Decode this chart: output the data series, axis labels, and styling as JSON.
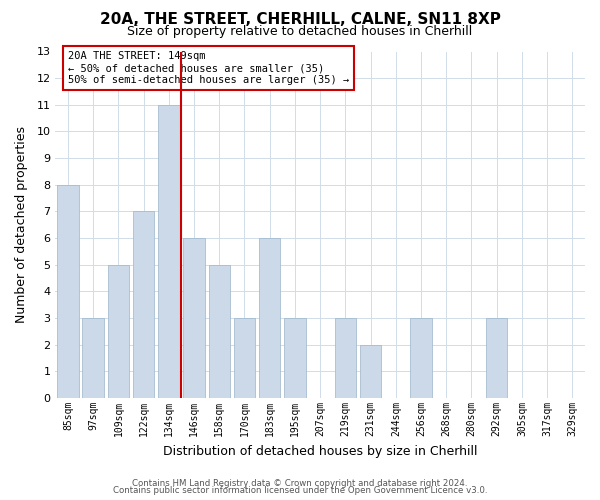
{
  "title_line1": "20A, THE STREET, CHERHILL, CALNE, SN11 8XP",
  "title_line2": "Size of property relative to detached houses in Cherhill",
  "xlabel": "Distribution of detached houses by size in Cherhill",
  "ylabel": "Number of detached properties",
  "bar_labels": [
    "85sqm",
    "97sqm",
    "109sqm",
    "122sqm",
    "134sqm",
    "146sqm",
    "158sqm",
    "170sqm",
    "183sqm",
    "195sqm",
    "207sqm",
    "219sqm",
    "231sqm",
    "244sqm",
    "256sqm",
    "268sqm",
    "280sqm",
    "292sqm",
    "305sqm",
    "317sqm",
    "329sqm"
  ],
  "bar_values": [
    8,
    3,
    5,
    7,
    11,
    6,
    5,
    3,
    6,
    3,
    0,
    3,
    2,
    0,
    3,
    0,
    0,
    3,
    0,
    0,
    0
  ],
  "bar_color": "#ccd9e8",
  "bar_edge_color": "#9bb5cc",
  "highlight_color": "#cc0000",
  "vline_x": 4.5,
  "annotation_title": "20A THE STREET: 149sqm",
  "annotation_line2": "← 50% of detached houses are smaller (35)",
  "annotation_line3": "50% of semi-detached houses are larger (35) →",
  "ylim": [
    0,
    13
  ],
  "yticks": [
    0,
    1,
    2,
    3,
    4,
    5,
    6,
    7,
    8,
    9,
    10,
    11,
    12,
    13
  ],
  "grid_color": "#d0dce8",
  "footer_line1": "Contains HM Land Registry data © Crown copyright and database right 2024.",
  "footer_line2": "Contains public sector information licensed under the Open Government Licence v3.0.",
  "bg_color": "#ffffff"
}
